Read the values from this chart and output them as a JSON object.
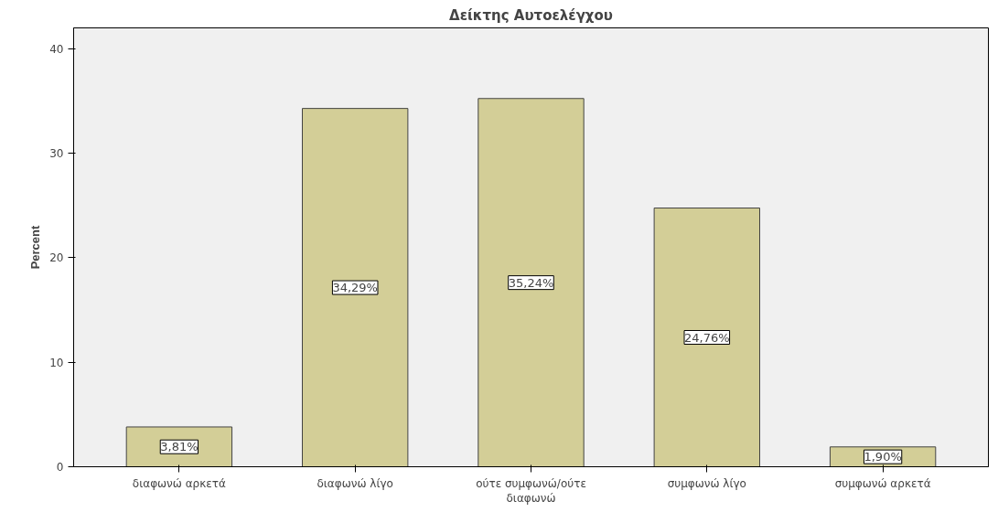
{
  "chart_data": {
    "type": "bar",
    "title": "Δείκτης Αυτοελέγχου",
    "ylabel": "Percent",
    "categories": [
      "διαφωνώ αρκετά",
      "διαφωνώ λίγο",
      "ούτε συμφωνώ/ούτε διαφωνώ",
      "συμφωνώ λίγο",
      "συμφωνώ αρκετά"
    ],
    "values": [
      3.81,
      34.29,
      35.24,
      24.76,
      1.9
    ],
    "value_labels": [
      "3,81%",
      "34,29%",
      "35,24%",
      "24,76%",
      "1,90%"
    ],
    "color": "#d3ce97",
    "ylim": [
      0,
      42
    ],
    "yticks": [
      0,
      10,
      20,
      30,
      40
    ],
    "grid": false
  }
}
